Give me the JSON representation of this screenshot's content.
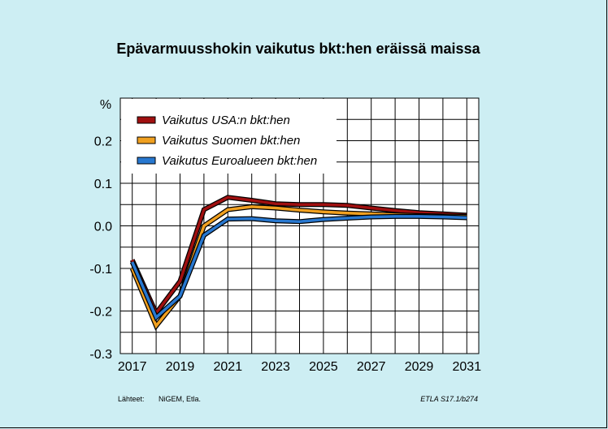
{
  "chart_data": {
    "type": "line",
    "title": "Epävarmuusshokin vaikutus bkt:hen eräissä maissa",
    "ylabel": "%",
    "xlabel": "",
    "x": [
      2017,
      2018,
      2019,
      2020,
      2021,
      2022,
      2023,
      2024,
      2025,
      2026,
      2027,
      2028,
      2029,
      2030,
      2031
    ],
    "x_tick_labels": [
      "2017",
      "2019",
      "2021",
      "2023",
      "2025",
      "2027",
      "2029",
      "2031"
    ],
    "y_tick_labels": [
      "0.2",
      "0.1",
      "0.0",
      "-0.1",
      "-0.2",
      "-0.3"
    ],
    "ylim": [
      -0.3,
      0.3
    ],
    "xlim": [
      2016.5,
      2031.5
    ],
    "grid": true,
    "legend_position": "top-left",
    "series": [
      {
        "name": "Vaikutus USA:n bkt:hen",
        "color": "#a01010",
        "values": [
          -0.08,
          -0.205,
          -0.13,
          0.038,
          0.067,
          0.06,
          0.052,
          0.05,
          0.05,
          0.048,
          0.042,
          0.036,
          0.031,
          0.028,
          0.025
        ]
      },
      {
        "name": "Vaikutus Suomen bkt:hen",
        "color": "#f0a020",
        "values": [
          -0.1,
          -0.235,
          -0.165,
          0.0,
          0.038,
          0.045,
          0.042,
          0.037,
          0.033,
          0.03,
          0.028,
          0.026,
          0.024,
          0.023,
          0.022
        ]
      },
      {
        "name": "Vaikutus Euroalueen bkt:hen",
        "color": "#2878d0",
        "values": [
          -0.085,
          -0.215,
          -0.165,
          -0.022,
          0.016,
          0.017,
          0.012,
          0.01,
          0.015,
          0.018,
          0.021,
          0.022,
          0.022,
          0.021,
          0.019
        ]
      }
    ]
  },
  "footer": {
    "source_label": "Lähteet:",
    "source_text": "NiGEM, Etla.",
    "code": "ETLA S17.1/b274"
  }
}
